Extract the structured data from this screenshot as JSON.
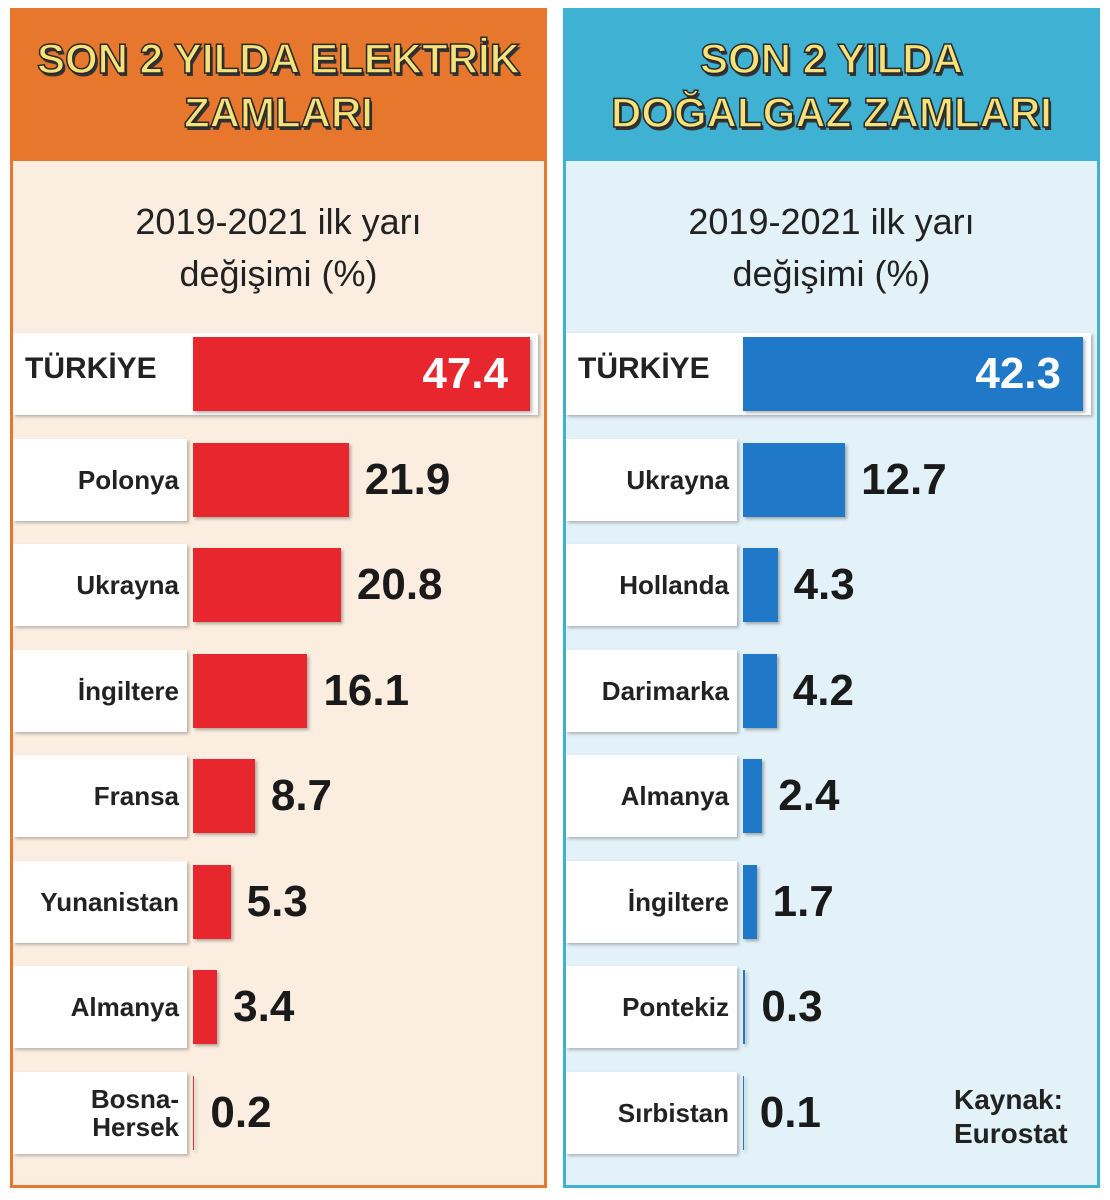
{
  "chart_data": [
    {
      "type": "bar",
      "title": "SON 2 YILDA ELEKTRİK ZAMLARI",
      "subtitle": "2019-2021 ilk yarı değişimi (%)",
      "categories": [
        "TÜRKİYE",
        "Polonya",
        "Ukrayna",
        "İngiltere",
        "Fransa",
        "Yunanistan",
        "Almanya",
        "Bosna-Hersek"
      ],
      "values": [
        47.4,
        21.9,
        20.8,
        16.1,
        8.7,
        5.3,
        3.4,
        0.2
      ],
      "color": "#e8262e"
    },
    {
      "type": "bar",
      "title": "SON 2 YILDA DOĞALGAZ ZAMLARI",
      "subtitle": "2019-2021 ilk yarı değişimi (%)",
      "categories": [
        "TÜRKİYE",
        "Ukrayna",
        "Hollanda",
        "Darimarka",
        "Almanya",
        "İngiltere",
        "Pontekiz",
        "Sırbistan"
      ],
      "values": [
        42.3,
        12.7,
        4.3,
        4.2,
        2.4,
        1.7,
        0.3,
        0.1
      ],
      "color": "#1f78c8",
      "annotation": "Kaynak: Eurostat"
    }
  ]
}
